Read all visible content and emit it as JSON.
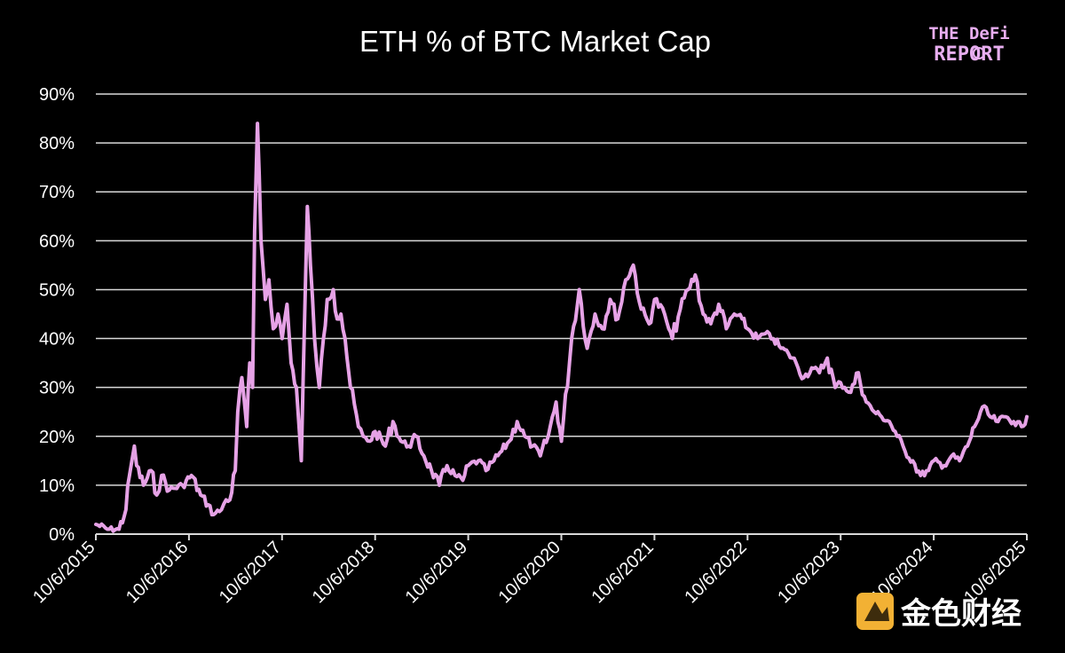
{
  "colors": {
    "background": "#000000",
    "line": "#e6a2e6",
    "grid": "#d9d9d9",
    "logo": "#e8aef0",
    "watermark": "#f2b134"
  },
  "logo": {
    "line1": "THE DeFi",
    "line2": "REPORT",
    "icon": "coin-icon"
  },
  "watermark": {
    "text": "金色财经",
    "icon": "jinse-logo-icon"
  },
  "chart_data": {
    "type": "line",
    "title": "ETH % of BTC Market Cap",
    "xlabel": "",
    "ylabel": "",
    "y_ticks": [
      "0%",
      "10%",
      "20%",
      "30%",
      "40%",
      "50%",
      "60%",
      "70%",
      "80%",
      "90%"
    ],
    "ylim": [
      0,
      90
    ],
    "x_ticks": [
      "10/6/2015",
      "10/6/2016",
      "10/6/2017",
      "10/6/2018",
      "10/6/2019",
      "10/6/2020",
      "10/6/2021",
      "10/6/2022",
      "10/6/2023",
      "10/6/2024",
      "10/6/2025"
    ],
    "xlim": [
      "2015-10-06",
      "2025-10-06"
    ],
    "grid": true,
    "legend": "none",
    "series": [
      {
        "x": [
          "2015-10-06",
          "2015-11-20",
          "2016-01-05",
          "2016-02-01",
          "2016-02-15",
          "2016-03-05",
          "2016-03-14",
          "2016-04-10",
          "2016-05-10",
          "2016-06-01",
          "2016-06-20",
          "2016-07-20",
          "2016-09-10",
          "2016-10-15",
          "2016-11-20",
          "2016-12-20",
          "2017-01-10",
          "2017-02-10",
          "2017-02-28",
          "2017-03-15",
          "2017-04-05",
          "2017-04-15",
          "2017-05-01",
          "2017-05-20",
          "2017-06-01",
          "2017-06-12",
          "2017-06-20",
          "2017-07-01",
          "2017-07-15",
          "2017-08-01",
          "2017-08-15",
          "2017-09-01",
          "2017-09-20",
          "2017-10-06",
          "2017-10-25",
          "2017-11-10",
          "2017-12-01",
          "2017-12-20",
          "2018-01-05",
          "2018-01-13",
          "2018-01-25",
          "2018-02-10",
          "2018-03-01",
          "2018-04-01",
          "2018-04-25",
          "2018-05-10",
          "2018-05-25",
          "2018-06-10",
          "2018-07-01",
          "2018-08-01",
          "2018-08-20",
          "2018-09-15",
          "2018-10-06",
          "2018-11-15",
          "2018-12-15",
          "2019-01-15",
          "2019-02-15",
          "2019-03-15",
          "2019-04-15",
          "2019-05-15",
          "2019-06-15",
          "2019-07-15",
          "2019-08-15",
          "2019-09-15",
          "2019-10-06",
          "2019-11-15",
          "2019-12-15",
          "2020-01-15",
          "2020-02-15",
          "2020-03-15",
          "2020-04-15",
          "2020-05-15",
          "2020-06-15",
          "2020-07-15",
          "2020-08-15",
          "2020-09-15",
          "2020-10-06",
          "2020-11-15",
          "2020-12-15",
          "2021-01-15",
          "2021-02-15",
          "2021-03-15",
          "2021-04-15",
          "2021-05-15",
          "2021-06-15",
          "2021-07-15",
          "2021-08-15",
          "2021-09-15",
          "2021-10-06",
          "2021-11-15",
          "2021-12-01",
          "2021-12-15",
          "2022-01-15",
          "2022-02-15",
          "2022-03-15",
          "2022-04-15",
          "2022-05-15",
          "2022-06-15",
          "2022-07-15",
          "2022-08-15",
          "2022-09-15",
          "2022-10-06",
          "2022-11-15",
          "2022-12-15",
          "2023-01-15",
          "2023-02-15",
          "2023-03-15",
          "2023-04-15",
          "2023-05-15",
          "2023-06-15",
          "2023-07-15",
          "2023-08-15",
          "2023-09-15",
          "2023-10-06",
          "2023-11-15",
          "2023-12-15",
          "2024-01-15",
          "2024-02-15",
          "2024-03-15",
          "2024-04-15",
          "2024-05-15",
          "2024-06-15",
          "2024-07-15",
          "2024-08-15",
          "2024-09-15",
          "2024-10-06",
          "2024-11-15",
          "2024-12-15",
          "2025-01-15",
          "2025-02-15",
          "2025-03-15",
          "2025-04-15",
          "2025-05-15",
          "2025-06-15",
          "2025-07-15",
          "2025-08-15",
          "2025-09-15",
          "2025-10-06"
        ],
        "y": [
          2,
          1,
          1,
          5,
          12,
          18,
          14,
          10,
          13,
          8,
          12,
          9,
          10,
          12,
          8,
          6,
          4,
          5,
          7,
          7,
          13,
          25,
          32,
          22,
          35,
          30,
          62,
          84,
          60,
          48,
          52,
          42,
          45,
          40,
          47,
          35,
          30,
          15,
          50,
          67,
          55,
          40,
          30,
          48,
          50,
          44,
          45,
          40,
          30,
          22,
          20,
          19,
          21,
          18,
          23,
          19,
          18,
          20,
          16,
          13,
          10,
          14,
          12,
          11,
          14,
          15,
          13,
          15,
          17,
          19,
          23,
          20,
          18,
          16,
          20,
          27,
          19,
          40,
          50,
          38,
          45,
          42,
          48,
          44,
          52,
          55,
          46,
          43,
          48,
          45,
          42,
          40,
          46,
          50,
          53,
          45,
          43,
          47,
          42,
          45,
          44,
          42,
          40,
          41,
          40,
          38,
          37,
          35,
          32,
          34,
          33,
          36,
          30,
          31,
          29,
          33,
          27,
          25,
          24,
          23,
          20,
          17,
          15,
          12,
          13,
          15,
          14,
          16,
          15,
          18,
          22,
          26,
          24,
          23,
          24,
          23,
          22,
          24
        ]
      }
    ]
  }
}
